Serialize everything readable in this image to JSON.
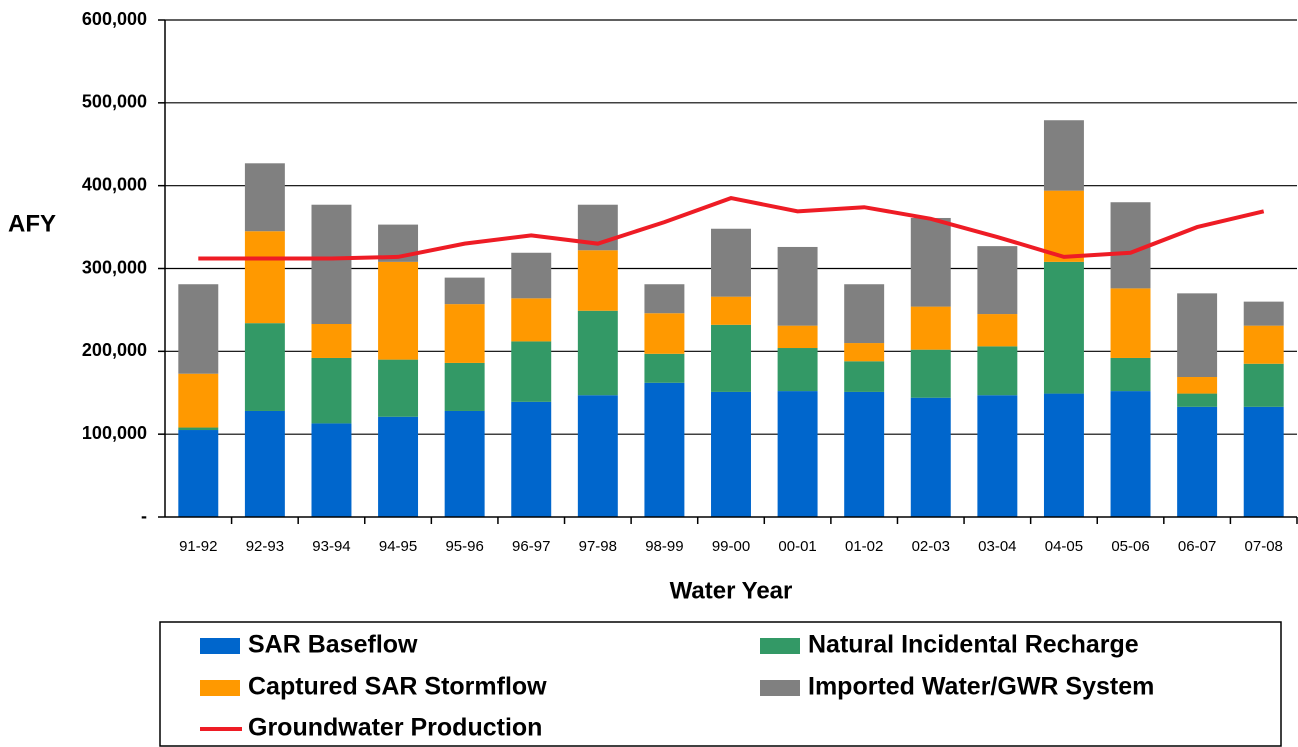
{
  "chart_data": {
    "type": "bar",
    "stacked": true,
    "y_label": "AFY",
    "x_label": "Water Year",
    "categories": [
      "91-92",
      "92-93",
      "93-94",
      "94-95",
      "95-96",
      "96-97",
      "97-98",
      "98-99",
      "99-00",
      "00-01",
      "01-02",
      "02-03",
      "03-04",
      "04-05",
      "05-06",
      "06-07",
      "07-08"
    ],
    "series": [
      {
        "name": "SAR Baseflow",
        "type": "bar",
        "color": "#0066cc",
        "values": [
          105000,
          128000,
          113000,
          121000,
          128000,
          139000,
          147000,
          162000,
          151000,
          152000,
          151000,
          144000,
          147000,
          149000,
          152000,
          133000,
          133000
        ]
      },
      {
        "name": "Natural Incidental Recharge",
        "type": "bar",
        "color": "#339966",
        "values": [
          3000,
          106000,
          79000,
          69000,
          58000,
          73000,
          102000,
          35000,
          81000,
          52000,
          37000,
          58000,
          59000,
          159000,
          40000,
          16000,
          52000
        ]
      },
      {
        "name": "Captured SAR Stormflow",
        "type": "bar",
        "color": "#ff9900",
        "values": [
          65000,
          111000,
          41000,
          118000,
          71000,
          52000,
          73000,
          49000,
          34000,
          27000,
          22000,
          52000,
          39000,
          86000,
          84000,
          20000,
          46000
        ]
      },
      {
        "name": "Imported Water/GWR System",
        "type": "bar",
        "color": "#808080",
        "values": [
          108000,
          82000,
          144000,
          45000,
          32000,
          55000,
          55000,
          35000,
          82000,
          95000,
          71000,
          107000,
          82000,
          85000,
          104000,
          101000,
          29000
        ]
      },
      {
        "name": "Groundwater Production",
        "type": "line",
        "color": "#ee1c25",
        "values": [
          312000,
          312000,
          312000,
          314000,
          330000,
          340000,
          330000,
          356000,
          385000,
          369000,
          374000,
          360000,
          338000,
          314000,
          319000,
          350000,
          369000
        ]
      }
    ],
    "ylim": [
      0,
      600000
    ],
    "yticks": [
      {
        "value": 0,
        "label": "-"
      },
      {
        "value": 100000,
        "label": "100,000"
      },
      {
        "value": 200000,
        "label": "200,000"
      },
      {
        "value": 300000,
        "label": "300,000"
      },
      {
        "value": 400000,
        "label": "400,000"
      },
      {
        "value": 500000,
        "label": "500,000"
      },
      {
        "value": 600000,
        "label": "600,000"
      }
    ],
    "grid": true,
    "legend": "bottom"
  }
}
